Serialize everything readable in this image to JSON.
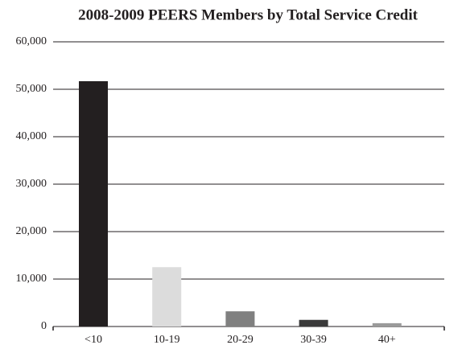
{
  "chart_data": {
    "type": "bar",
    "title": "2008-2009 PEERS Members by Total Service Credit",
    "categories": [
      "<10",
      "10-19",
      "20-29",
      "30-39",
      "40+"
    ],
    "values": [
      51700,
      12500,
      3200,
      1400,
      700
    ],
    "colors": [
      "#231f20",
      "#dcdcdc",
      "#808080",
      "#3a3a3a",
      "#9a9a9a"
    ],
    "ylim": [
      0,
      60000
    ],
    "yticks": [
      0,
      {
        "value": 10000,
        "label": "10,000"
      },
      {
        "value": 20000,
        "label": "20,000"
      },
      {
        "value": 30000,
        "label": "30,000"
      },
      {
        "value": 40000,
        "label": "40,000"
      },
      {
        "value": 50000,
        "label": "50,000"
      },
      {
        "value": 60000,
        "label": "60,000"
      }
    ],
    "grid": true
  }
}
